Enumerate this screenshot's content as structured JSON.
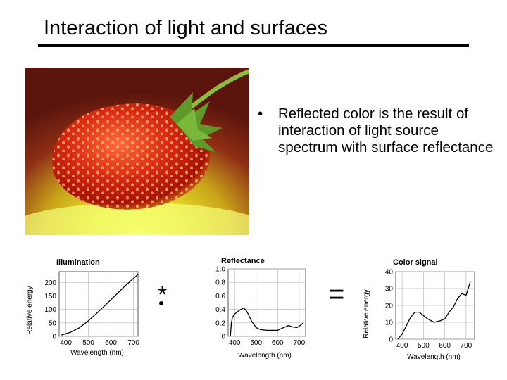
{
  "slide": {
    "title": "Interaction of light and surfaces",
    "bullets": [
      {
        "marker": "•",
        "text": "Reflected color is the result of interaction of light source spectrum with surface reflectance"
      }
    ],
    "image_subject": "strawberry-photo",
    "operators": {
      "multiply": "*",
      "equals": "="
    }
  },
  "chart_data": [
    {
      "type": "line",
      "title": "Illumination",
      "xlabel": "Wavelength (nm)",
      "ylabel": "Relative energy",
      "x_ticks": [
        "400",
        "500",
        "600",
        "700"
      ],
      "y_ticks": [
        "0",
        "50",
        "100",
        "150",
        "200"
      ],
      "xlim": [
        370,
        720
      ],
      "ylim": [
        0,
        240
      ],
      "grid": true,
      "series": [
        {
          "x": [
            380,
            420,
            460,
            500,
            540,
            580,
            620,
            660,
            700,
            720
          ],
          "y": [
            5,
            15,
            32,
            58,
            88,
            120,
            152,
            185,
            215,
            230
          ]
        }
      ]
    },
    {
      "type": "line",
      "title": "Reflectance",
      "xlabel": "Wavelength (nm)",
      "ylabel": "",
      "x_ticks": [
        "400",
        "500",
        "600",
        "700"
      ],
      "y_ticks": [
        "0",
        "0.2",
        "0.4",
        "0.6",
        "0.8",
        "1.0"
      ],
      "xlim": [
        370,
        730
      ],
      "ylim": [
        0,
        1.0
      ],
      "grid": true,
      "series": [
        {
          "x": [
            380,
            385,
            390,
            400,
            420,
            440,
            450,
            460,
            480,
            500,
            520,
            550,
            600,
            620,
            650,
            670,
            690,
            700,
            720
          ],
          "y": [
            0.0,
            0.2,
            0.28,
            0.33,
            0.38,
            0.42,
            0.4,
            0.35,
            0.22,
            0.13,
            0.1,
            0.09,
            0.09,
            0.12,
            0.16,
            0.14,
            0.13,
            0.15,
            0.2
          ]
        }
      ]
    },
    {
      "type": "line",
      "title": "Color signal",
      "xlabel": "Wavelength (nm)",
      "ylabel": "Relative energy",
      "x_ticks": [
        "400",
        "500",
        "600",
        "700"
      ],
      "y_ticks": [
        "0",
        "10",
        "20",
        "30",
        "40"
      ],
      "xlim": [
        370,
        740
      ],
      "ylim": [
        0,
        40
      ],
      "grid": true,
      "series": [
        {
          "x": [
            380,
            400,
            420,
            440,
            460,
            480,
            500,
            520,
            550,
            580,
            600,
            620,
            640,
            660,
            680,
            700,
            710,
            720
          ],
          "y": [
            0,
            3,
            8,
            13,
            16,
            16,
            14,
            12,
            10,
            11,
            12,
            16,
            19,
            24,
            27,
            26,
            30,
            34
          ]
        }
      ]
    }
  ]
}
